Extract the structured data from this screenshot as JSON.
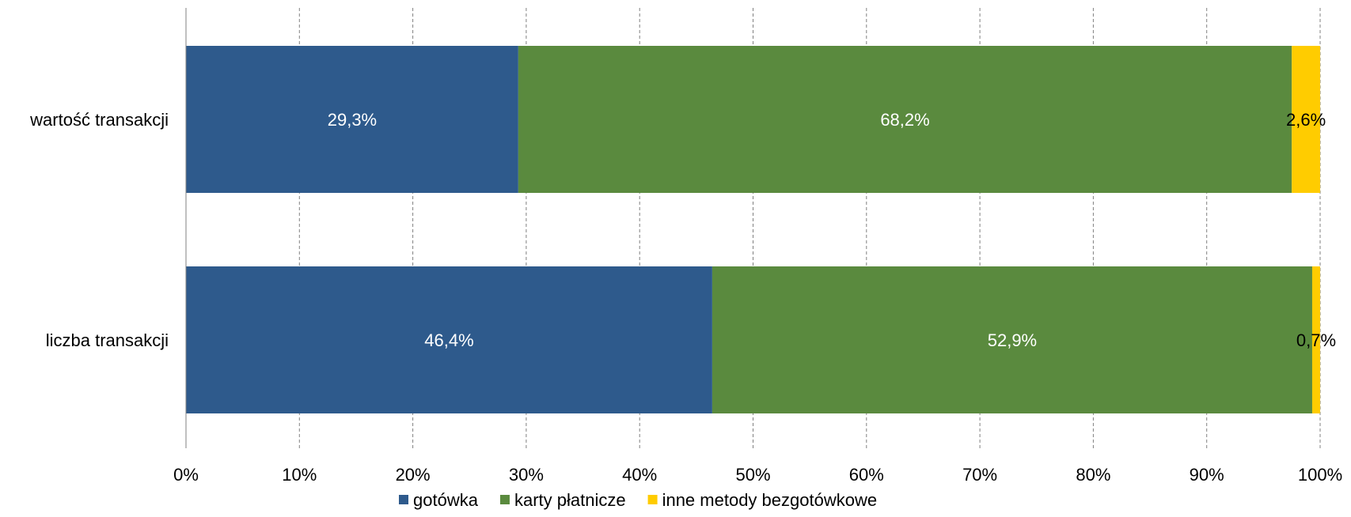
{
  "chart_data": {
    "type": "bar",
    "orientation": "horizontal",
    "stacked": "percent",
    "categories": [
      "wartość transakcji",
      "liczba transakcji"
    ],
    "series": [
      {
        "name": "gotówka",
        "values": [
          29.3,
          46.4
        ],
        "labels": [
          "29,3%",
          "46,4%"
        ],
        "color": "#2E5A8C",
        "label_color": "#ffffff"
      },
      {
        "name": "karty płatnicze",
        "values": [
          68.2,
          52.9
        ],
        "labels": [
          "68,2%",
          "52,9%"
        ],
        "color": "#5A8A3E",
        "label_color": "#ffffff"
      },
      {
        "name": "inne metody bezgotówkowe",
        "values": [
          2.6,
          0.7
        ],
        "labels": [
          "2,6%",
          "0,7%"
        ],
        "color": "#FFCC00",
        "label_color": "#000000"
      }
    ],
    "xlim": [
      0,
      100
    ],
    "x_ticks": [
      "0%",
      "10%",
      "20%",
      "30%",
      "40%",
      "50%",
      "60%",
      "70%",
      "80%",
      "90%",
      "100%"
    ],
    "grid": "vertical dashed",
    "legend": "bottom"
  }
}
